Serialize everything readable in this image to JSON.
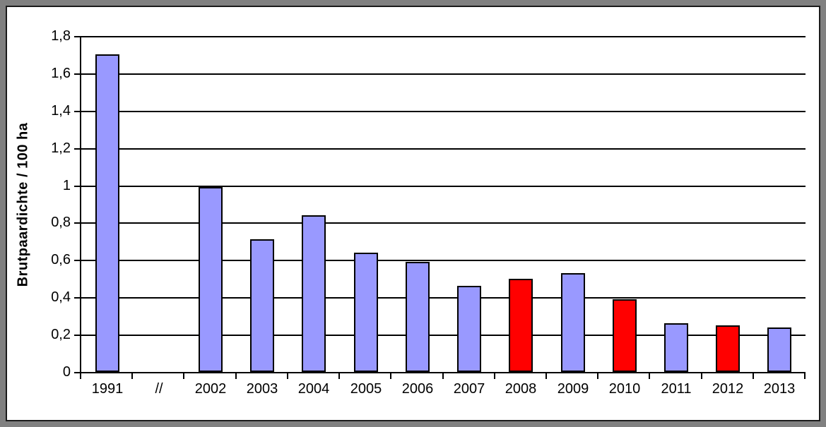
{
  "chart_data": {
    "type": "bar",
    "title": "",
    "xlabel": "",
    "ylabel": "Brutpaardichte / 100 ha",
    "ylim": [
      0,
      1.8
    ],
    "ytick_step": 0.2,
    "ytick_values": [
      0,
      0.2,
      0.4,
      0.6,
      0.8,
      1.0,
      1.2,
      1.4,
      1.6,
      1.8
    ],
    "ytick_labels": [
      "0",
      "0,2",
      "0,4",
      "0,6",
      "0,8",
      "1",
      "1,2",
      "1,4",
      "1,6",
      "1,8"
    ],
    "categories": [
      "1991",
      "//",
      "2002",
      "2003",
      "2004",
      "2005",
      "2006",
      "2007",
      "2008",
      "2009",
      "2010",
      "2011",
      "2012",
      "2013"
    ],
    "values": [
      1.7,
      null,
      0.99,
      0.71,
      0.84,
      0.64,
      0.59,
      0.46,
      0.5,
      0.53,
      0.39,
      0.26,
      0.25,
      0.24
    ],
    "bar_colors": [
      "#9999FF",
      null,
      "#9999FF",
      "#9999FF",
      "#9999FF",
      "#9999FF",
      "#9999FF",
      "#9999FF",
      "#FF0000",
      "#9999FF",
      "#FF0000",
      "#9999FF",
      "#FF0000",
      "#9999FF"
    ],
    "grid": true,
    "legend": false,
    "axis_break_label": "//",
    "colors": {
      "default_bar": "#9999FF",
      "highlight_bar": "#FF0000",
      "bar_border": "#000000",
      "gridline": "#000000",
      "axis": "#000000",
      "frame_outer": "#808080",
      "panel_border": "#1a1a1a",
      "background": "#FFFFFF",
      "text": "#000000"
    }
  }
}
